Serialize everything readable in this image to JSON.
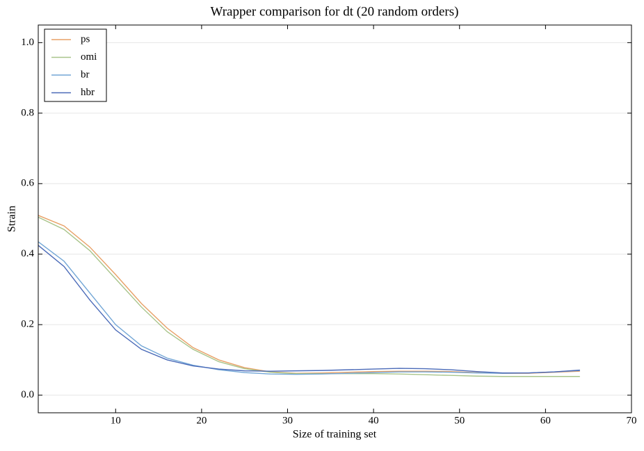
{
  "chart_data": {
    "type": "line",
    "title": "Wrapper comparison for dt (20 random orders)",
    "xlabel": "Size of training set",
    "ylabel": "Strain",
    "x": [
      1,
      4,
      7,
      10,
      13,
      16,
      19,
      22,
      25,
      28,
      31,
      34,
      37,
      40,
      43,
      46,
      49,
      52,
      55,
      58,
      61,
      64
    ],
    "series": [
      {
        "name": "ps",
        "color": "#e8a066",
        "values": [
          0.51,
          0.48,
          0.42,
          0.342,
          0.26,
          0.19,
          0.135,
          0.1,
          0.078,
          0.066,
          0.062,
          0.063,
          0.065,
          0.067,
          0.068,
          0.068,
          0.067,
          0.064,
          0.062,
          0.062,
          0.065,
          0.068
        ]
      },
      {
        "name": "omi",
        "color": "#a8c48a",
        "values": [
          0.505,
          0.47,
          0.41,
          0.33,
          0.25,
          0.18,
          0.13,
          0.095,
          0.075,
          0.065,
          0.061,
          0.061,
          0.061,
          0.061,
          0.06,
          0.058,
          0.056,
          0.054,
          0.053,
          0.053,
          0.053,
          0.053
        ]
      },
      {
        "name": "br",
        "color": "#72a6d6",
        "values": [
          0.435,
          0.38,
          0.29,
          0.2,
          0.14,
          0.105,
          0.085,
          0.072,
          0.064,
          0.06,
          0.059,
          0.06,
          0.062,
          0.064,
          0.066,
          0.066,
          0.065,
          0.063,
          0.062,
          0.063,
          0.066,
          0.07
        ]
      },
      {
        "name": "hbr",
        "color": "#4a6ab8",
        "values": [
          0.425,
          0.365,
          0.27,
          0.185,
          0.13,
          0.1,
          0.083,
          0.074,
          0.069,
          0.068,
          0.069,
          0.07,
          0.072,
          0.074,
          0.076,
          0.075,
          0.072,
          0.067,
          0.063,
          0.063,
          0.066,
          0.071
        ]
      }
    ],
    "xlim": [
      1,
      70
    ],
    "ylim": [
      -0.05,
      1.05
    ],
    "xticks": [
      10,
      20,
      30,
      40,
      50,
      60,
      70
    ],
    "yticks": [
      {
        "value": 0,
        "label": "0.0"
      },
      {
        "value": 0.2,
        "label": "0.2"
      },
      {
        "value": 0.4,
        "label": "0.4"
      },
      {
        "value": 0.6,
        "label": "0.6"
      },
      {
        "value": 0.8,
        "label": "0.8"
      },
      {
        "value": 1,
        "label": "1.0"
      }
    ],
    "grid": true,
    "legend": "upper left"
  }
}
